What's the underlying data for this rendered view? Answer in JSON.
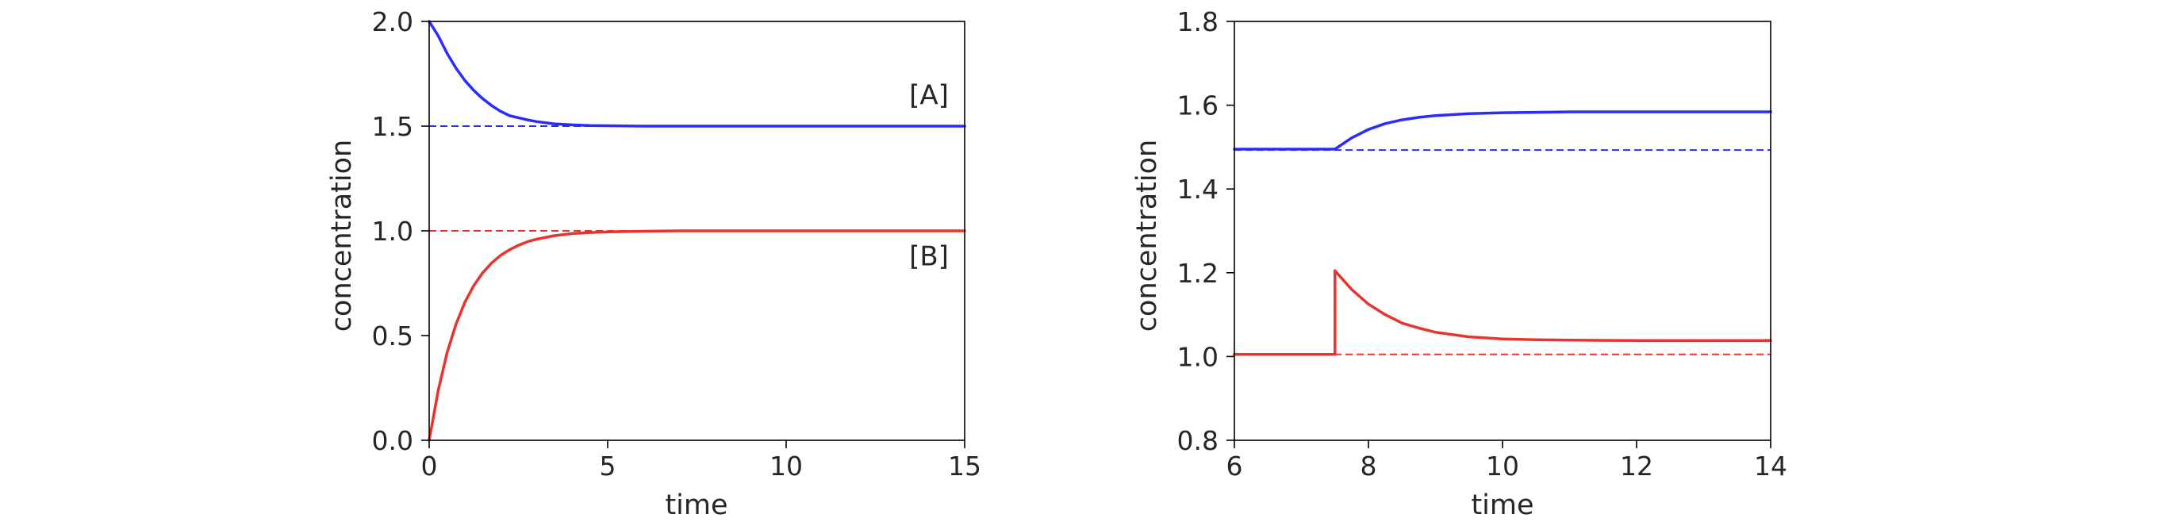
{
  "chart_data": [
    {
      "type": "line",
      "title": "",
      "xlabel": "time",
      "ylabel": "concentration",
      "xlim": [
        0,
        15
      ],
      "ylim": [
        0,
        2
      ],
      "xticks": [
        "0",
        "5",
        "10",
        "15"
      ],
      "yticks": [
        "0.0",
        "0.5",
        "1.0",
        "1.5",
        "2.0"
      ],
      "grid": false,
      "series": [
        {
          "color": "#2b2bff",
          "style": "solid",
          "x": [
            0,
            0.25,
            0.5,
            0.75,
            1,
            1.25,
            1.5,
            1.75,
            2,
            2.25,
            2.5,
            2.75,
            3,
            3.5,
            4,
            4.5,
            5,
            6,
            7,
            8,
            10,
            12,
            15
          ],
          "y": [
            2.0,
            1.932,
            1.848,
            1.777,
            1.718,
            1.67,
            1.631,
            1.598,
            1.571,
            1.55,
            1.54,
            1.53,
            1.522,
            1.511,
            1.506,
            1.503,
            1.502,
            1.5,
            1.5,
            1.5,
            1.5,
            1.5,
            1.5
          ]
        },
        {
          "color": "#e8332e",
          "style": "solid",
          "x": [
            0,
            0.25,
            0.5,
            0.75,
            1,
            1.25,
            1.5,
            1.75,
            2,
            2.25,
            2.5,
            2.75,
            3,
            3.5,
            4,
            4.5,
            5,
            6,
            7,
            8,
            10,
            12,
            15
          ],
          "y": [
            0.0,
            0.236,
            0.417,
            0.554,
            0.659,
            0.739,
            0.8,
            0.847,
            0.883,
            0.91,
            0.931,
            0.948,
            0.96,
            0.977,
            0.987,
            0.992,
            0.995,
            0.998,
            1.0,
            1.0,
            1.0,
            1.0,
            1.0
          ]
        },
        {
          "color": "#2b2bff",
          "style": "dashed",
          "x": [
            0,
            15
          ],
          "y": [
            1.5,
            1.5
          ]
        },
        {
          "color": "#e8332e",
          "style": "dashed",
          "x": [
            0,
            15
          ],
          "y": [
            1.0,
            1.0
          ]
        }
      ],
      "annotations": [
        {
          "text": "[A]",
          "x": 14.0,
          "y": 1.65
        },
        {
          "text": "[B]",
          "x": 14.0,
          "y": 0.88
        }
      ]
    },
    {
      "type": "line",
      "title": "",
      "xlabel": "time",
      "ylabel": "concentration",
      "xlim": [
        6,
        14
      ],
      "ylim": [
        0.8,
        1.8
      ],
      "xticks": [
        "6",
        "8",
        "10",
        "12",
        "14"
      ],
      "yticks": [
        "0.8",
        "1.0",
        "1.2",
        "1.4",
        "1.6",
        "1.8"
      ],
      "grid": false,
      "series": [
        {
          "color": "#2b2bff",
          "style": "solid",
          "x": [
            6,
            7.5,
            7.75,
            8,
            8.25,
            8.5,
            8.75,
            9,
            9.5,
            10,
            10.5,
            11,
            12,
            13,
            14
          ],
          "y": [
            1.495,
            1.495,
            1.522,
            1.542,
            1.556,
            1.565,
            1.571,
            1.575,
            1.58,
            1.582,
            1.583,
            1.584,
            1.584,
            1.584,
            1.584
          ]
        },
        {
          "color": "#e8332e",
          "style": "solid",
          "x": [
            6,
            7.5,
            7.5,
            7.75,
            8,
            8.25,
            8.5,
            8.75,
            9,
            9.5,
            10,
            10.5,
            11,
            12,
            13,
            14
          ],
          "y": [
            1.005,
            1.005,
            1.205,
            1.16,
            1.125,
            1.1,
            1.08,
            1.068,
            1.058,
            1.047,
            1.042,
            1.04,
            1.039,
            1.038,
            1.038,
            1.038
          ]
        },
        {
          "color": "#2b2bff",
          "style": "dashed",
          "x": [
            6,
            14
          ],
          "y": [
            1.493,
            1.493
          ]
        },
        {
          "color": "#e8332e",
          "style": "dashed",
          "x": [
            6,
            14
          ],
          "y": [
            1.005,
            1.005
          ]
        }
      ],
      "annotations": []
    }
  ]
}
